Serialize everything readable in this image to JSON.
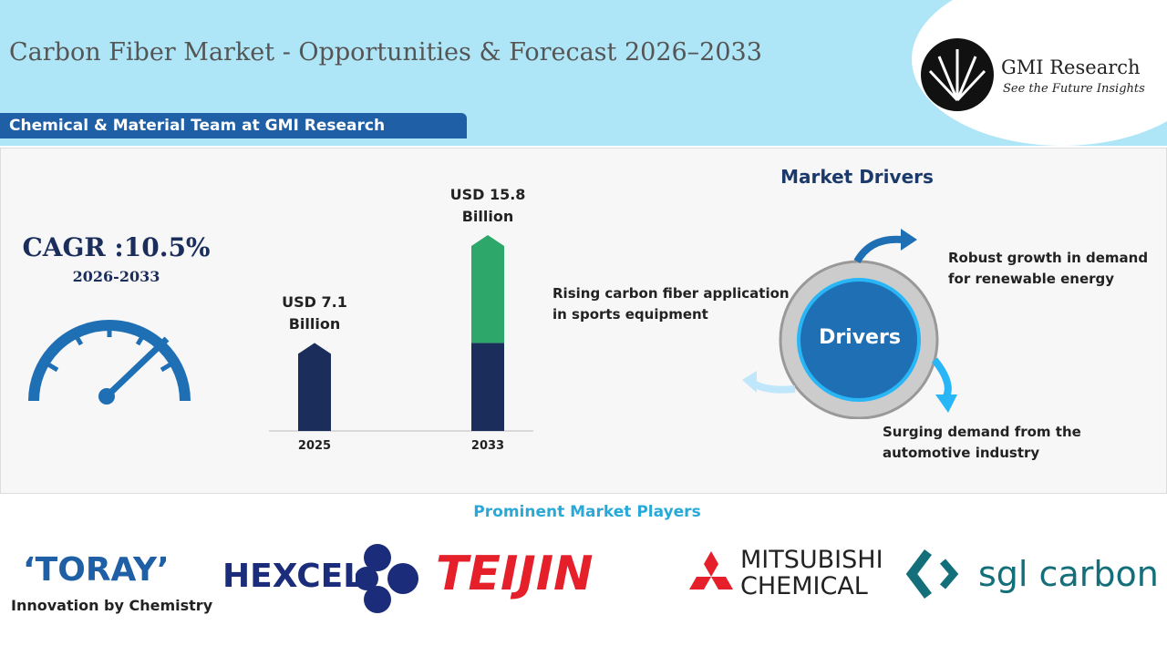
{
  "header": {
    "title": "Carbon Fiber Market - Opportunities & Forecast 2026–2033",
    "team": "Chemical & Material Team at GMI Research",
    "brand": "GMI Research",
    "tagline": "See the Future Insights"
  },
  "cagr": {
    "label": "CAGR :10.5%",
    "period": "2026-2033"
  },
  "chart_data": {
    "type": "bar",
    "categories": [
      "2025",
      "2033"
    ],
    "values": [
      7.1,
      15.8
    ],
    "value_labels": [
      "USD 7.1 Billion",
      "USD 15.8 Billion"
    ]
  },
  "drivers": {
    "title": "Market Drivers",
    "center": "Drivers",
    "items": [
      "Robust growth in demand for renewable energy",
      "Rising carbon fiber application in sports equipment",
      "Surging demand from the automotive industry"
    ]
  },
  "players": {
    "title": "Prominent Market Players",
    "names": [
      "‘TORAY’",
      "Innovation by Chemistry",
      "HEXCEL",
      "TEIJIN",
      "MITSUBISHI",
      "CHEMICAL",
      "sgl carbon"
    ]
  }
}
